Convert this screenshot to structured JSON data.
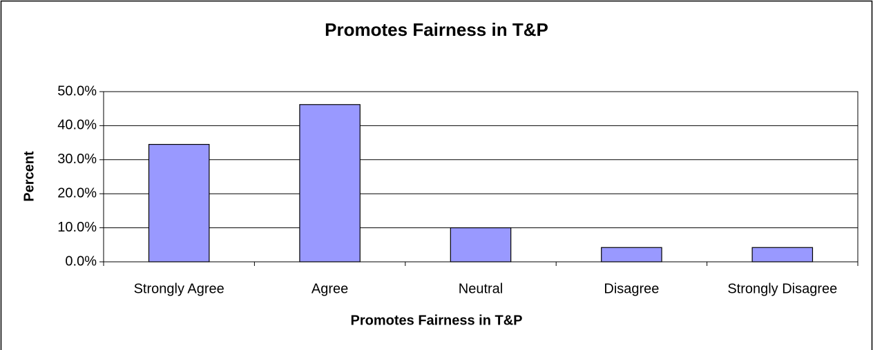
{
  "chart_data": {
    "type": "bar",
    "title": "Promotes Fairness in T&P",
    "x_label": "Promotes Fairness in T&P",
    "y_label": "Percent",
    "categories": [
      "Strongly Agree",
      "Agree",
      "Neutral",
      "Disagree",
      "Strongly Disagree"
    ],
    "values": [
      34.5,
      46.2,
      10,
      4.2,
      4.2
    ],
    "color": "#9999ff",
    "ylim": [
      0,
      50
    ],
    "yticks": [
      {
        "value": 0,
        "label": "0.0%"
      },
      {
        "value": 10,
        "label": "10.0%"
      },
      {
        "value": 20,
        "label": "20.0%"
      },
      {
        "value": 30,
        "label": "30.0%"
      },
      {
        "value": 40,
        "label": "40.0%"
      },
      {
        "value": 50,
        "label": "50.0%"
      }
    ],
    "grid": true
  }
}
